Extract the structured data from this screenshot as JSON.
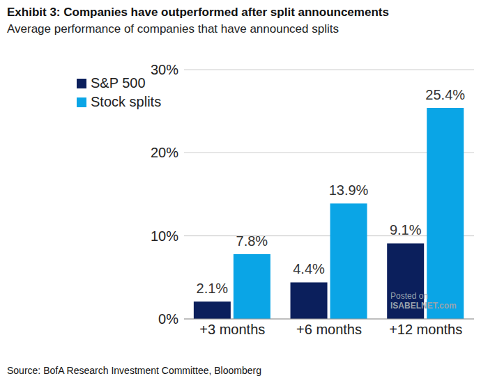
{
  "chart_data": {
    "type": "bar",
    "title": "Exhibit 3: Companies have outperformed after split announcements",
    "subtitle": "Average performance of companies that have announced splits",
    "source": "Source: BofA Research Investment Committee, Bloomberg",
    "annotations": [
      "Posted on",
      "ISABELNET.com"
    ],
    "categories": [
      "+3 months",
      "+6 months",
      "+12 months"
    ],
    "series": [
      {
        "name": "S&P 500",
        "color": "#0b1f5c",
        "values": [
          2.1,
          4.4,
          9.1
        ],
        "value_labels": [
          "2.1%",
          "4.4%",
          "9.1%"
        ]
      },
      {
        "name": "Stock splits",
        "color": "#0aa5e6",
        "values": [
          7.8,
          13.9,
          25.4
        ],
        "value_labels": [
          "7.8%",
          "13.9%",
          "25.4%"
        ]
      }
    ],
    "ylim": [
      0,
      30
    ],
    "yticks": [
      {
        "value": 0,
        "label": "0%"
      },
      {
        "value": 10,
        "label": "10%"
      },
      {
        "value": 20,
        "label": "20%"
      },
      {
        "value": 30,
        "label": "30%"
      }
    ],
    "grid": true,
    "legend": "top-left",
    "data_labels": true
  }
}
